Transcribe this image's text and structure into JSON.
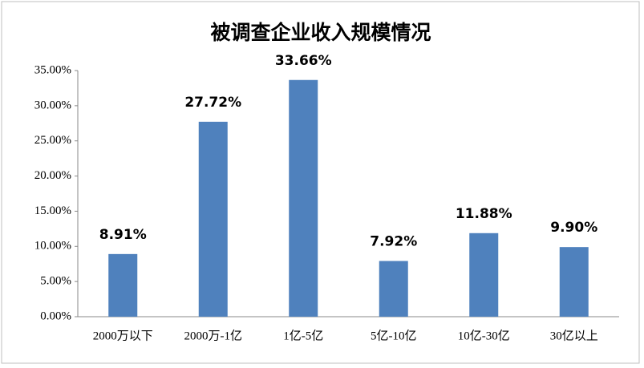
{
  "chart_data": {
    "type": "bar",
    "title": "被调查企业收入规模情况",
    "categories": [
      "2000万以下",
      "2000万-1亿",
      "1亿-5亿",
      "5亿-10亿",
      "10亿-30亿",
      "30亿以上"
    ],
    "values": [
      8.91,
      27.72,
      33.66,
      7.92,
      11.88,
      9.9
    ],
    "value_labels": [
      "8.91%",
      "27.72%",
      "33.66%",
      "7.92%",
      "11.88%",
      "9.90%"
    ],
    "color": "#4f81bd",
    "ylim": [
      0,
      35
    ],
    "yticks": [
      {
        "value": 0,
        "label": "0.00%"
      },
      {
        "value": 5,
        "label": "5.00%"
      },
      {
        "value": 10,
        "label": "10.00%"
      },
      {
        "value": 15,
        "label": "15.00%"
      },
      {
        "value": 20,
        "label": "20.00%"
      },
      {
        "value": 25,
        "label": "25.00%"
      },
      {
        "value": 30,
        "label": "30.00%"
      },
      {
        "value": 35,
        "label": "35.00%"
      }
    ],
    "grid": false
  }
}
